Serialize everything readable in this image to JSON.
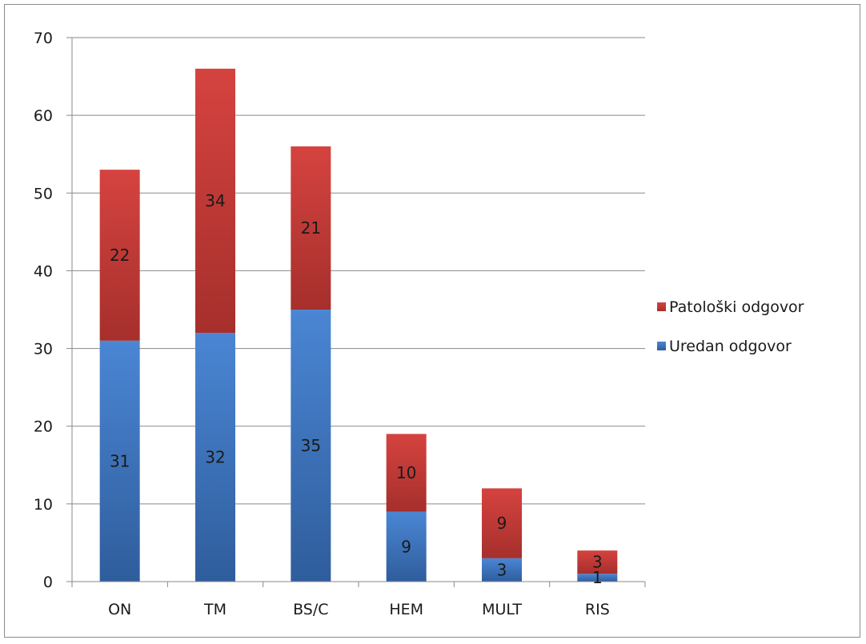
{
  "chart_data": {
    "type": "bar",
    "stacked": true,
    "title": "",
    "xlabel": "",
    "ylabel": "",
    "categories": [
      "ON",
      "TM",
      "BS/C",
      "HEM",
      "MULT",
      "RIS"
    ],
    "series": [
      {
        "name": "Uredan odgovor",
        "values": [
          31,
          32,
          35,
          9,
          3,
          1
        ],
        "color": "#3a72bf"
      },
      {
        "name": "Patološki odgovor",
        "values": [
          22,
          34,
          21,
          10,
          9,
          3
        ],
        "color": "#c0393a"
      }
    ],
    "ylim": [
      0,
      70
    ],
    "yticks": [
      0,
      10,
      20,
      30,
      40,
      50,
      60,
      70
    ],
    "grid": true,
    "legend_position": "right",
    "legend_order": [
      "Patološki odgovor",
      "Uredan odgovor"
    ],
    "data_labels": true
  }
}
